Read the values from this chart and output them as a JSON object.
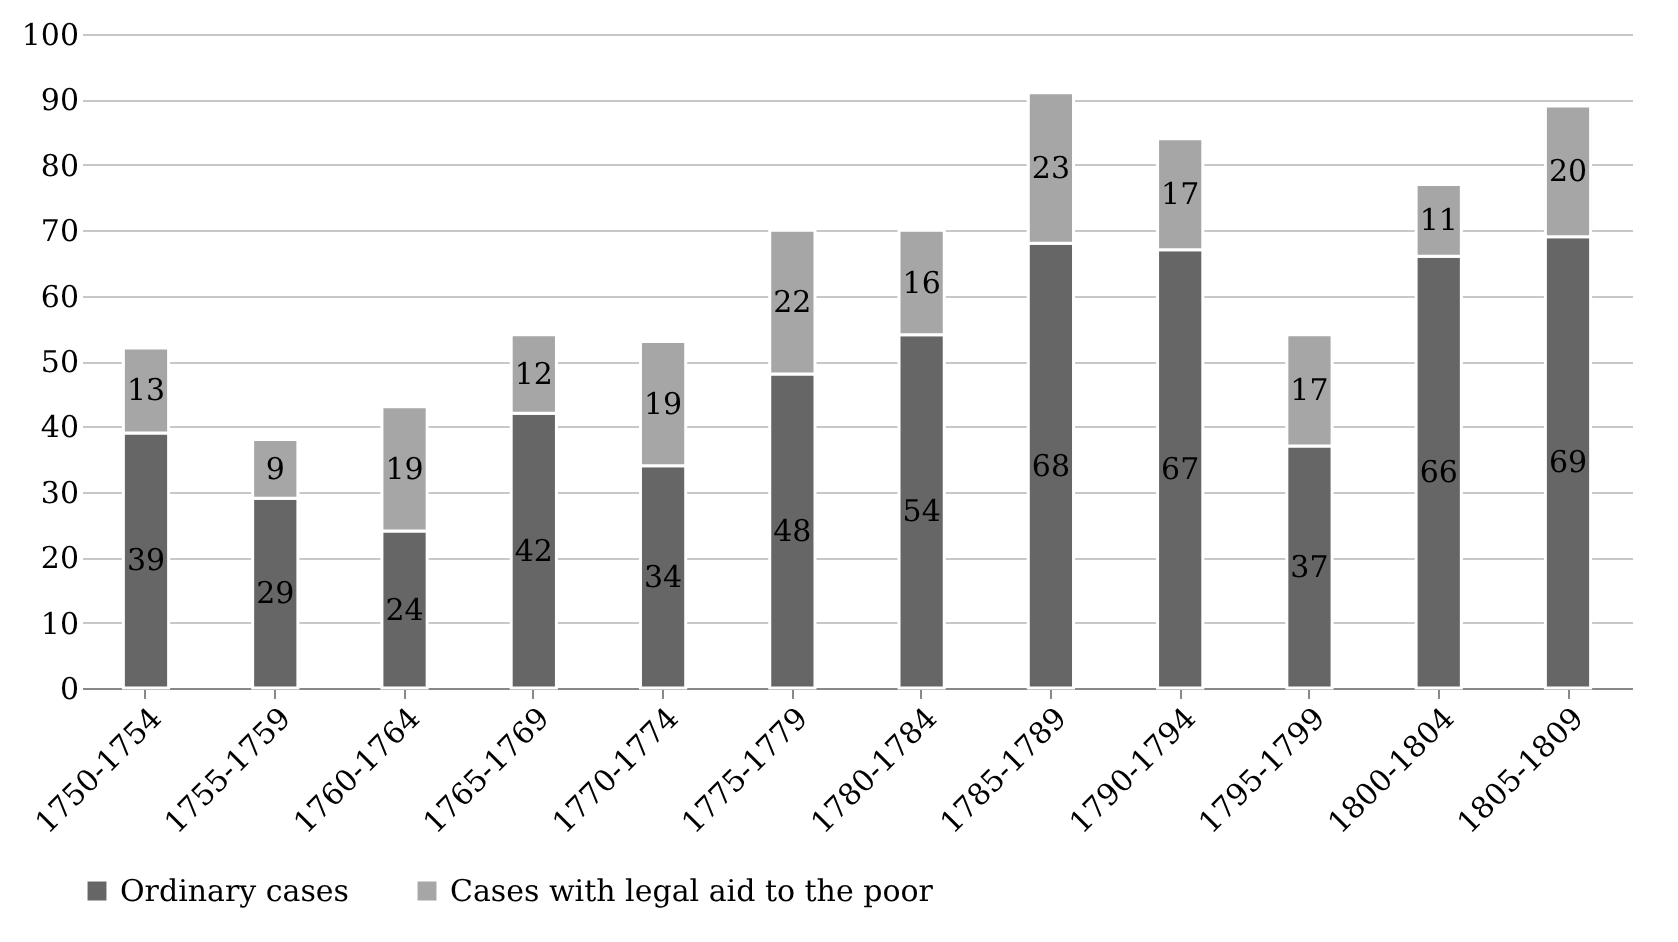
{
  "chart_data": {
    "type": "bar",
    "stacked": true,
    "categories": [
      "1750-1754",
      "1755-1759",
      "1760-1764",
      "1765-1769",
      "1770-1774",
      "1775-1779",
      "1780-1784",
      "1785-1789",
      "1790-1794",
      "1795-1799",
      "1800-1804",
      "1805-1809"
    ],
    "series": [
      {
        "name": "Ordinary cases",
        "color": "#666666",
        "values": [
          39,
          29,
          24,
          42,
          34,
          48,
          54,
          68,
          67,
          37,
          66,
          69
        ]
      },
      {
        "name": "Cases with legal aid to the poor",
        "color": "#a6a6a6",
        "values": [
          13,
          9,
          19,
          12,
          19,
          22,
          16,
          23,
          17,
          17,
          11,
          20
        ]
      }
    ],
    "ylim": [
      0,
      100
    ],
    "yticks": [
      0,
      10,
      20,
      30,
      40,
      50,
      60,
      70,
      80,
      90,
      100
    ],
    "grid": "y",
    "legend": "bottom",
    "data_labels": true
  }
}
